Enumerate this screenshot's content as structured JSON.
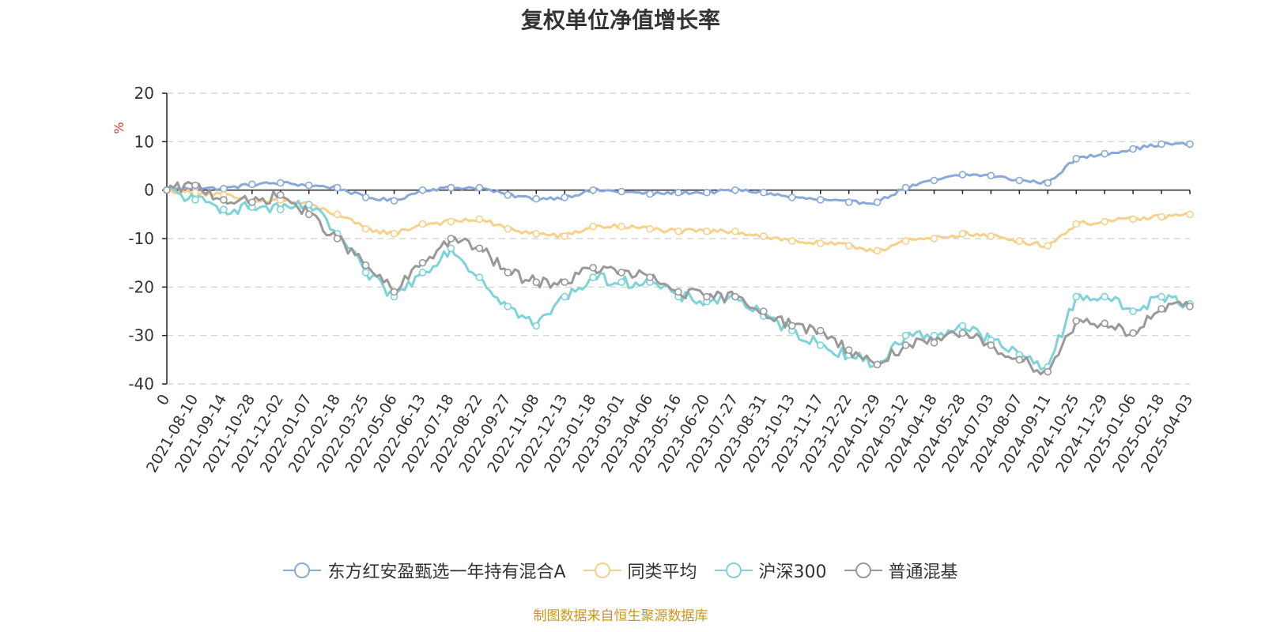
{
  "title": "复权单位净值增长率",
  "source_note": "制图数据来自恒生聚源数据库",
  "chart_data": {
    "type": "line",
    "title": "复权单位净值增长率",
    "ylabel": "%",
    "xlabel": "",
    "ylim": [
      -40,
      20
    ],
    "yticks": [
      20,
      10,
      0,
      -10,
      -20,
      -30,
      -40
    ],
    "grid": true,
    "legend_position": "bottom",
    "categories": [
      "0",
      "2021-08-10",
      "2021-09-14",
      "2021-10-28",
      "2021-12-02",
      "2022-01-07",
      "2022-02-18",
      "2022-03-25",
      "2022-05-06",
      "2022-06-13",
      "2022-07-18",
      "2022-08-22",
      "2022-09-27",
      "2022-11-08",
      "2022-12-13",
      "2023-01-18",
      "2023-03-01",
      "2023-04-06",
      "2023-05-16",
      "2023-06-20",
      "2023-07-27",
      "2023-08-31",
      "2023-10-13",
      "2023-11-17",
      "2023-12-22",
      "2024-01-29",
      "2024-03-12",
      "2024-04-18",
      "2024-05-28",
      "2024-07-03",
      "2024-08-07",
      "2024-09-11",
      "2024-10-25",
      "2024-11-29",
      "2025-01-06",
      "2025-02-18",
      "2025-04-03"
    ],
    "series": [
      {
        "name": "东方红安盈甄选一年持有混合A",
        "color": "#8aa8d8",
        "values": [
          0,
          0.5,
          0.3,
          1.2,
          1.5,
          1.0,
          0.5,
          -1.5,
          -2.2,
          0.0,
          0.5,
          0.5,
          -1.0,
          -1.8,
          -1.5,
          0.0,
          -0.3,
          -0.8,
          -0.5,
          -0.5,
          0.0,
          -0.5,
          -1.5,
          -2.0,
          -2.5,
          -2.5,
          0.5,
          2.0,
          3.2,
          3.0,
          2.0,
          1.5,
          6.5,
          7.5,
          8.5,
          9.5,
          9.5
        ]
      },
      {
        "name": "同类平均",
        "color": "#f7d08a",
        "values": [
          0,
          -0.5,
          -1.0,
          -2.5,
          -2.0,
          -3.0,
          -5.0,
          -8.0,
          -9.0,
          -7.0,
          -6.5,
          -6.0,
          -8.0,
          -9.0,
          -9.5,
          -7.5,
          -7.5,
          -8.0,
          -8.5,
          -8.5,
          -8.5,
          -9.5,
          -10.5,
          -11.0,
          -11.5,
          -12.5,
          -10.5,
          -10.0,
          -9.0,
          -9.5,
          -10.5,
          -11.5,
          -7.0,
          -6.5,
          -6.0,
          -5.5,
          -5.0
        ]
      },
      {
        "name": "沪深300",
        "color": "#7dd3d8",
        "values": [
          0,
          -2.0,
          -4.0,
          -3.5,
          -4.0,
          -3.0,
          -9.0,
          -17.0,
          -22.0,
          -17.0,
          -12.0,
          -18.0,
          -24.0,
          -28.0,
          -22.0,
          -18.0,
          -19.0,
          -19.0,
          -22.0,
          -23.0,
          -22.0,
          -26.0,
          -29.0,
          -32.0,
          -34.0,
          -36.0,
          -30.0,
          -30.0,
          -28.0,
          -31.0,
          -34.0,
          -36.5,
          -22.0,
          -22.0,
          -25.0,
          -22.0,
          -23.5
        ]
      },
      {
        "name": "普通混基",
        "color": "#999999",
        "values": [
          0,
          1.0,
          -2.0,
          -2.5,
          -1.0,
          -5.0,
          -10.0,
          -15.5,
          -21.0,
          -15.0,
          -10.0,
          -12.0,
          -17.0,
          -19.0,
          -19.0,
          -16.0,
          -17.0,
          -18.0,
          -21.0,
          -22.0,
          -22.0,
          -25.0,
          -28.0,
          -29.0,
          -33.0,
          -36.0,
          -32.0,
          -31.5,
          -29.5,
          -32.0,
          -35.0,
          -37.5,
          -27.0,
          -27.5,
          -29.5,
          -24.5,
          -24.0
        ]
      }
    ]
  }
}
